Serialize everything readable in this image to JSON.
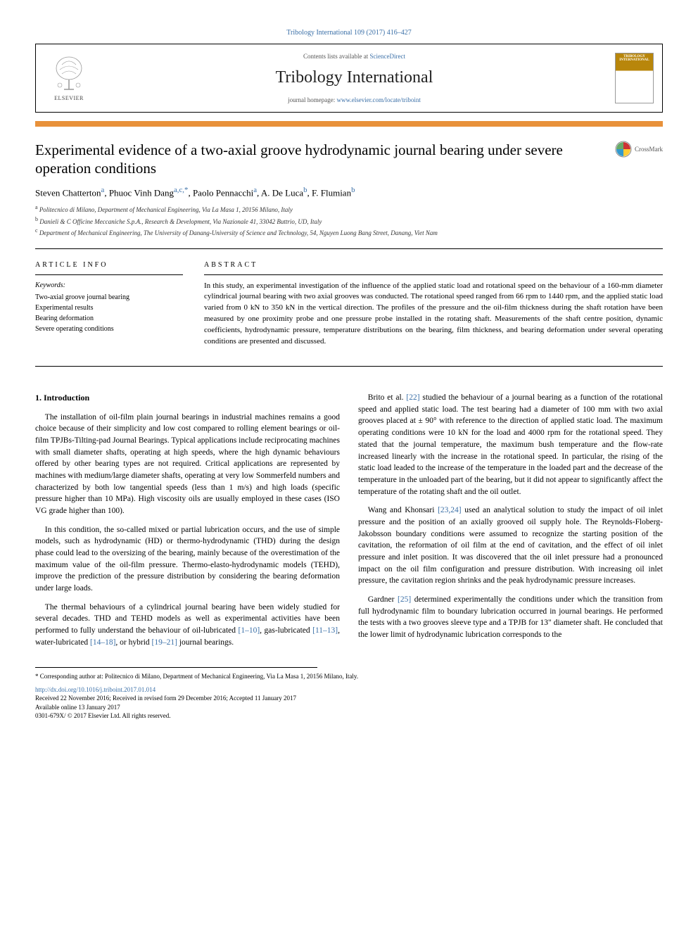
{
  "header": {
    "citation": "Tribology International 109 (2017) 416–427",
    "contents_prefix": "Contents lists available at ",
    "contents_link": "ScienceDirect",
    "journal_name": "Tribology International",
    "homepage_prefix": "journal homepage: ",
    "homepage_url": "www.elsevier.com/locate/triboint",
    "publisher": "ELSEVIER",
    "cover_title": "TRIBOLOGY INTERNATIONAL"
  },
  "crossmark": {
    "label": "CrossMark"
  },
  "title": "Experimental evidence of a two-axial groove hydrodynamic journal bearing under severe operation conditions",
  "authors_html": "Steven Chatterton<sup>a</sup>, Phuoc Vinh Dang<sup>a,c,*</sup>, Paolo Pennacchi<sup>a</sup>, A. De Luca<sup>b</sup>, F. Flumian<sup>b</sup>",
  "authors": [
    {
      "name": "Steven Chatterton",
      "sup": "a"
    },
    {
      "name": "Phuoc Vinh Dang",
      "sup": "a,c,*"
    },
    {
      "name": "Paolo Pennacchi",
      "sup": "a"
    },
    {
      "name": "A. De Luca",
      "sup": "b"
    },
    {
      "name": "F. Flumian",
      "sup": "b"
    }
  ],
  "affiliations": [
    {
      "sup": "a",
      "text": "Politecnico di Milano, Department of Mechanical Engineering, Via La Masa 1, 20156 Milano, Italy"
    },
    {
      "sup": "b",
      "text": "Danieli & C Officine Meccaniche S.p.A., Research & Development, Via Nazionale 41, 33042 Buttrio, UD, Italy"
    },
    {
      "sup": "c",
      "text": "Department of Mechanical Engineering, The University of Danang-University of Science and Technology, 54, Nguyen Luong Bang Street, Danang, Viet Nam"
    }
  ],
  "labels": {
    "article_info": "ARTICLE INFO",
    "abstract": "ABSTRACT",
    "keywords": "Keywords:"
  },
  "keywords": [
    "Two-axial groove journal bearing",
    "Experimental results",
    "Bearing deformation",
    "Severe operating conditions"
  ],
  "abstract": "In this study, an experimental investigation of the influence of the applied static load and rotational speed on the behaviour of a 160-mm diameter cylindrical journal bearing with two axial grooves was conducted. The rotational speed ranged from 66 rpm to 1440 rpm, and the applied static load varied from 0 kN to 350 kN in the vertical direction. The profiles of the pressure and the oil-film thickness during the shaft rotation have been measured by one proximity probe and one pressure probe installed in the rotating shaft. Measurements of the shaft centre position, dynamic coefficients, hydrodynamic pressure, temperature distributions on the bearing, film thickness, and bearing deformation under several operating conditions are presented and discussed.",
  "section1": {
    "heading": "1. Introduction",
    "p1": "The installation of oil-film plain journal bearings in industrial machines remains a good choice because of their simplicity and low cost compared to rolling element bearings or oil-film TPJBs-Tilting-pad Journal Bearings. Typical applications include reciprocating machines with small diameter shafts, operating at high speeds, where the high dynamic behaviours offered by other bearing types are not required. Critical applications are represented by machines with medium/large diameter shafts, operating at very low Sommerfeld numbers and characterized by both low tangential speeds (less than 1 m/s) and high loads (specific pressure higher than 10 MPa). High viscosity oils are usually employed in these cases (ISO VG grade higher than 100).",
    "p2": "In this condition, the so-called mixed or partial lubrication occurs, and the use of simple models, such as hydrodynamic (HD) or thermo-hydrodynamic (THD) during the design phase could lead to the oversizing of the bearing, mainly because of the overestimation of the maximum value of the oil-film pressure. Thermo-elasto-hydrodynamic models (TEHD), improve the prediction of the pressure distribution by considering the bearing deformation under large loads.",
    "p3a": "The thermal behaviours of a cylindrical journal bearing have been widely studied for several decades. THD and TEHD models as well as experimental activities have been performed to fully understand the behaviour of oil-lubricated ",
    "p3_link1": "[1–10]",
    "p3b": ", gas-lubricated ",
    "p3_link2": "[11–13]",
    "p3c": ", water-lubricated ",
    "p3_link3": "[14–18]",
    "p3d": ", or hybrid ",
    "p3_link4": "[19–21]",
    "p3e": " journal bearings.",
    "p4a": "Brito et al. ",
    "p4_link1": "[22]",
    "p4b": " studied the behaviour of a journal bearing as a function of the rotational speed and applied static load. The test bearing had a diameter of 100 mm with two axial grooves placed at ± 90° with reference to the direction of applied static load. The maximum operating conditions were 10 kN for the load and 4000 rpm for the rotational speed. They stated that the journal temperature, the maximum bush temperature and the flow-rate increased linearly with the increase in the rotational speed. In particular, the rising of the static load leaded to the increase of the temperature in the loaded part and the decrease of the temperature in the unloaded part of the bearing, but it did not appear to significantly affect the temperature of the rotating shaft and the oil outlet.",
    "p5a": "Wang and Khonsari ",
    "p5_link1": "[23,24]",
    "p5b": " used an analytical solution to study the impact of oil inlet pressure and the position of an axially grooved oil supply hole. The Reynolds-Floberg-Jakobsson boundary conditions were assumed to recognize the starting position of the cavitation, the reformation of oil film at the end of cavitation, and the effect of oil inlet pressure and inlet position. It was discovered that the oil inlet pressure had a pronounced impact on the oil film configuration and pressure distribution. With increasing oil inlet pressure, the cavitation region shrinks and the peak hydrodynamic pressure increases.",
    "p6a": "Gardner ",
    "p6_link1": "[25]",
    "p6b": " determined experimentally the conditions under which the transition from full hydrodynamic film to boundary lubrication occurred in journal bearings. He performed the tests with a two grooves sleeve type and a TPJB for 13\" diameter shaft. He concluded that the lower limit of hydrodynamic lubrication corresponds to the"
  },
  "footer": {
    "corresp": "* Corresponding author at: Politecnico di Milano, Department of Mechanical Engineering, Via La Masa 1, 20156 Milano, Italy.",
    "doi": "http://dx.doi.org/10.1016/j.triboint.2017.01.014",
    "received": "Received 22 November 2016; Received in revised form 29 December 2016; Accepted 11 January 2017",
    "available": "Available online 13 January 2017",
    "copyright": "0301-679X/ © 2017 Elsevier Ltd. All rights reserved."
  },
  "colors": {
    "link": "#3a6fa7",
    "accent_bar": "#e8913a",
    "text": "#000000",
    "background": "#ffffff"
  }
}
